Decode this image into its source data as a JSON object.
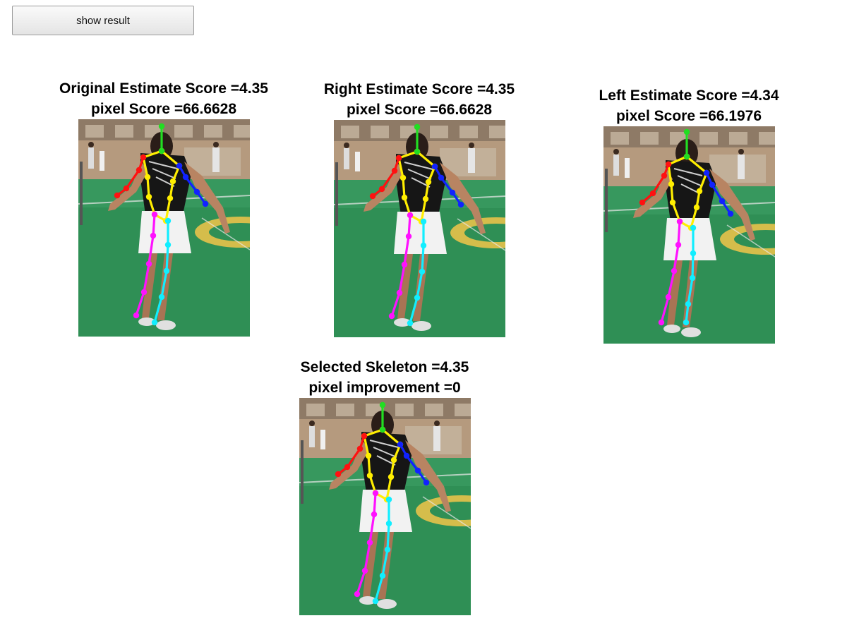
{
  "app": {
    "button_label": "show result"
  },
  "colors": {
    "head": "#22dd22",
    "torso": "#ffee00",
    "right_arm": "#ff1111",
    "left_arm": "#1122ff",
    "right_leg": "#ff11ff",
    "left_leg": "#11eeff"
  },
  "panels": [
    {
      "id": "original",
      "title": "Original Estimate Score =4.35",
      "subtitle": "pixel Score =66.6628"
    },
    {
      "id": "right",
      "title": "Right Estimate Score =4.35",
      "subtitle": "pixel Score =66.6628"
    },
    {
      "id": "left",
      "title": "Left Estimate Score =4.34",
      "subtitle": "pixel Score =66.1976"
    },
    {
      "id": "selected",
      "title": "Selected Skeleton =4.35",
      "subtitle": "pixel improvement =0"
    }
  ]
}
